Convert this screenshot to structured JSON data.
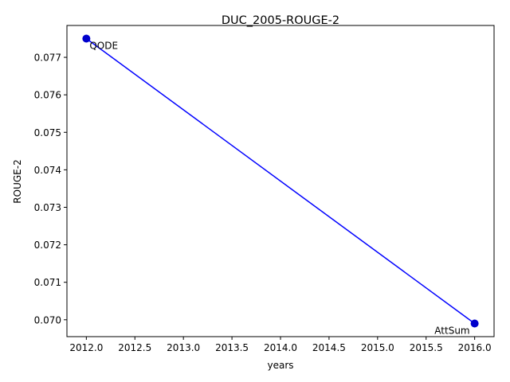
{
  "chart_data": {
    "type": "line",
    "title": "DUC_2005-ROUGE-2",
    "xlabel": "years",
    "ylabel": "ROUGE-2",
    "xlim": [
      2011.8,
      2016.2
    ],
    "ylim": [
      0.06955,
      0.07785
    ],
    "xticks": [
      2012.0,
      2012.5,
      2013.0,
      2013.5,
      2014.0,
      2014.5,
      2015.0,
      2015.5,
      2016.0
    ],
    "xtick_labels": [
      "2012.0",
      "2012.5",
      "2013.0",
      "2013.5",
      "2014.0",
      "2014.5",
      "2015.0",
      "2015.5",
      "2016.0"
    ],
    "yticks": [
      0.07,
      0.071,
      0.072,
      0.073,
      0.074,
      0.075,
      0.076,
      0.077
    ],
    "ytick_labels": [
      "0.070",
      "0.071",
      "0.072",
      "0.073",
      "0.074",
      "0.075",
      "0.076",
      "0.077"
    ],
    "grid": false,
    "series": [
      {
        "color": "#0000ff",
        "marker_color": "#0000cc",
        "points": [
          {
            "x": 2012,
            "y": 0.0775,
            "label": "QODE"
          },
          {
            "x": 2016,
            "y": 0.0699,
            "label": "AttSum"
          }
        ]
      }
    ]
  }
}
